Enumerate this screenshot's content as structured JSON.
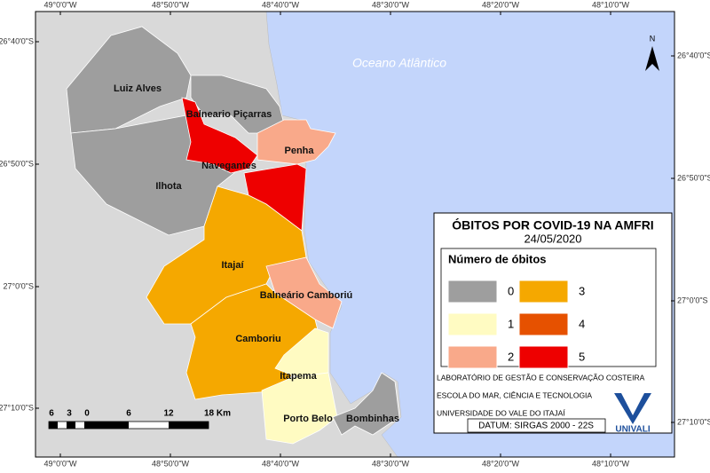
{
  "map": {
    "ocean_label": "Oceano Atlântico",
    "north": "N",
    "coords": {
      "top": [
        "49°0'0\"W",
        "48°50'0\"W",
        "48°40'0\"W",
        "48°30'0\"W",
        "48°20'0\"W",
        "48°10'0\"W"
      ],
      "bottom": [
        "49°0'0\"W",
        "48°50'0\"W",
        "48°40'0\"W",
        "48°30'0\"W",
        "48°20'0\"W",
        "48°10'0\"W"
      ],
      "left": [
        "26°40'0\"S",
        "26°50'0\"S",
        "27°0'0\"S",
        "27°10'0\"S"
      ],
      "right": [
        "26°40'0\"S",
        "26°50'0\"S",
        "27°0'0\"S",
        "27°10'0\"S"
      ]
    },
    "municipalities": [
      {
        "name": "Luiz Alves",
        "color": "#9e9e9e"
      },
      {
        "name": "Balneario Piçarras",
        "color": "#9e9e9e"
      },
      {
        "name": "Navegantes",
        "color": "#ee0000"
      },
      {
        "name": "Penha",
        "color": "#f9a98a"
      },
      {
        "name": "Ilhota",
        "color": "#9e9e9e"
      },
      {
        "name": "Itajaí",
        "color": "#f5a800"
      },
      {
        "name": "Balneário Camboriú",
        "color": "#f9a98a"
      },
      {
        "name": "Camboriu",
        "color": "#f5a800"
      },
      {
        "name": "Itapema",
        "color": "#fffbc2"
      },
      {
        "name": "Porto Belo",
        "color": "#fffbc2"
      },
      {
        "name": "Bombinhas",
        "color": "#9e9e9e"
      }
    ],
    "scale_bar": [
      "6",
      "3",
      "0",
      "6",
      "12",
      "18 Km"
    ]
  },
  "legend": {
    "title": "ÓBITOS POR COVID-19 NA AMFRI",
    "date": "24/05/2020",
    "heading": "Número de óbitos",
    "classes": [
      {
        "label": 0,
        "color": "#9e9e9e"
      },
      {
        "label": 1,
        "color": "#fffbc2"
      },
      {
        "label": 2,
        "color": "#f9a98a"
      },
      {
        "label": 3,
        "color": "#f5a800"
      },
      {
        "label": 4,
        "color": "#e65100"
      },
      {
        "label": 5,
        "color": "#ee0000"
      }
    ],
    "credits": [
      "LABORATÓRIO DE GESTÃO E CONSERVAÇÃO COSTEIRA",
      "ESCOLA DO MAR, CIÊNCIA E TECNOLOGIA",
      "UNIVERSIDADE DO VALE DO ITAJAÍ"
    ],
    "datum": "DATUM: SIRGAS 2000 - 22S",
    "logo": "UNIVALI"
  }
}
